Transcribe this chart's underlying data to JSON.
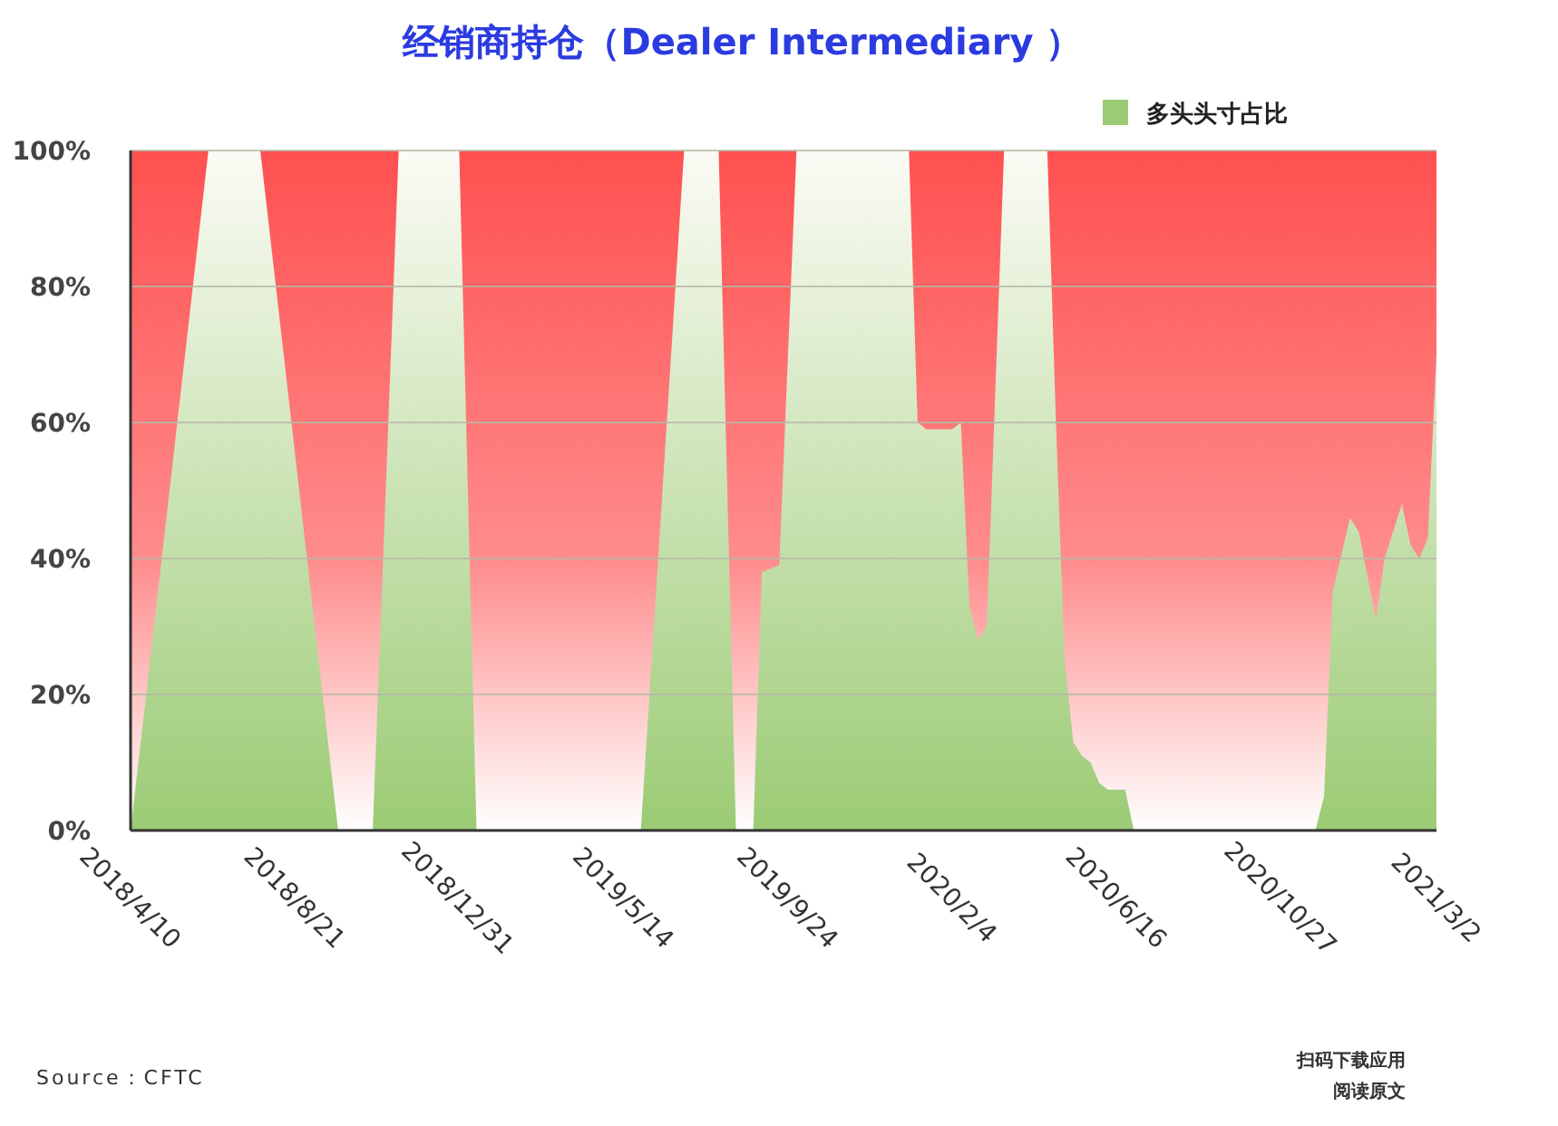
{
  "chart_data": {
    "type": "area",
    "title": "经销商持仓（Dealer Intermediary ）",
    "x": [
      "2018-04-10",
      "2018-06-12",
      "2018-07-24",
      "2018-09-25",
      "2018-10-23",
      "2018-11-13",
      "2019-01-01",
      "2019-01-15",
      "2019-05-28",
      "2019-07-02",
      "2019-07-30",
      "2019-08-13",
      "2019-08-27",
      "2019-09-03",
      "2019-09-17",
      "2019-10-01",
      "2019-12-31",
      "2020-01-07",
      "2020-01-14",
      "2020-02-04",
      "2020-02-11",
      "2020-02-18",
      "2020-02-25",
      "2020-03-03",
      "2020-03-17",
      "2020-04-21",
      "2020-04-28",
      "2020-05-05",
      "2020-05-12",
      "2020-05-19",
      "2020-05-26",
      "2020-06-02",
      "2020-06-09",
      "2020-06-23",
      "2020-06-30",
      "2020-11-24",
      "2020-12-01",
      "2020-12-08",
      "2020-12-22",
      "2020-12-29",
      "2021-01-12",
      "2021-01-19",
      "2021-02-02",
      "2021-02-09",
      "2021-02-16",
      "2021-02-23",
      "2021-03-02"
    ],
    "series": [
      {
        "name": "多头头寸占比",
        "color": "#9bcb74",
        "values": [
          0,
          100,
          100,
          0,
          0,
          100,
          100,
          0,
          0,
          100,
          100,
          0,
          0,
          38,
          39,
          100,
          100,
          60,
          59,
          59,
          60,
          33,
          28,
          30,
          100,
          100,
          60,
          25,
          13,
          11,
          10,
          7,
          6,
          6,
          0,
          0,
          5,
          35,
          46,
          44,
          31,
          40,
          48,
          42,
          40,
          43,
          70
        ]
      }
    ],
    "xlim": [
      "2018-04-10",
      "2021-03-02"
    ],
    "xticks": [
      {
        "value": "2018-04-10",
        "label": "2018/4/10"
      },
      {
        "value": "2018-08-21",
        "label": "2018/8/21"
      },
      {
        "value": "2018-12-31",
        "label": "2018/12/31"
      },
      {
        "value": "2019-05-14",
        "label": "2019/5/14"
      },
      {
        "value": "2019-09-24",
        "label": "2019/9/24"
      },
      {
        "value": "2020-02-04",
        "label": "2020/2/4"
      },
      {
        "value": "2020-06-16",
        "label": "2020/6/16"
      },
      {
        "value": "2020-10-27",
        "label": "2020/10/27"
      },
      {
        "value": "2021-03-02",
        "label": "2021/3/2"
      }
    ],
    "ylim": [
      0,
      100
    ],
    "yticks": [
      {
        "value": 0,
        "label": "0%"
      },
      {
        "value": 20,
        "label": "20%"
      },
      {
        "value": 40,
        "label": "40%"
      },
      {
        "value": 60,
        "label": "60%"
      },
      {
        "value": 80,
        "label": "80%"
      },
      {
        "value": 100,
        "label": "100%"
      }
    ],
    "grid": "y",
    "legend": "top right",
    "annotations": [
      "Source：CFTC",
      "扫码下载应用",
      "阅读原文"
    ]
  }
}
